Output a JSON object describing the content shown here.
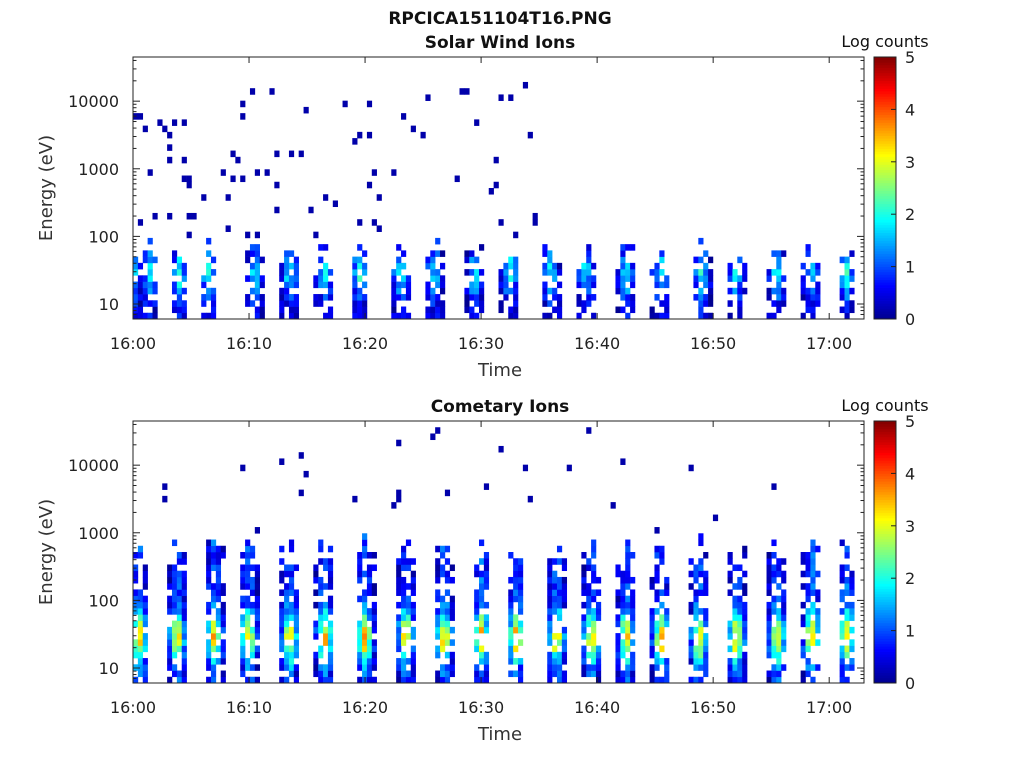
{
  "figure": {
    "title": "RPCICA151104T16.PNG"
  },
  "colors": {
    "colormap": [
      "#00008f",
      "#0000ff",
      "#0080ff",
      "#00ffff",
      "#80ff80",
      "#ffff00",
      "#ff8000",
      "#ff0000",
      "#800000"
    ],
    "axes": "#222222"
  },
  "chart_data": [
    {
      "type": "heatmap",
      "title": "Solar Wind Ions",
      "xlabel": "Time",
      "ylabel": "Energy (eV)",
      "x_ticks": [
        "16:00",
        "16:10",
        "16:20",
        "16:30",
        "16:40",
        "16:50",
        "17:00"
      ],
      "y_scale": "log",
      "y_ticks": [
        "10",
        "100",
        "1000",
        "10000"
      ],
      "ylim": [
        6,
        45000
      ],
      "xlim_minutes": [
        0,
        63
      ],
      "colorbar": {
        "title": "Log counts",
        "min": 0,
        "max": 5,
        "ticks": [
          "0",
          "1",
          "2",
          "3",
          "4",
          "5"
        ]
      },
      "bursts_minutes": [
        0,
        1.5,
        4,
        6.5,
        10.5,
        13.5,
        16.5,
        19.5,
        23,
        26,
        29.5,
        32.5,
        36,
        39,
        42.5,
        45.5,
        49,
        52,
        55.5,
        58.5,
        61.5
      ],
      "burst_intensity": 1.4,
      "sparse_high_energy": true
    },
    {
      "type": "heatmap",
      "title": "Cometary Ions",
      "xlabel": "Time",
      "ylabel": "Energy (eV)",
      "x_ticks": [
        "16:00",
        "16:10",
        "16:20",
        "16:30",
        "16:40",
        "16:50",
        "17:00"
      ],
      "y_scale": "log",
      "y_ticks": [
        "10",
        "100",
        "1000",
        "10000"
      ],
      "ylim": [
        6,
        45000
      ],
      "xlim_minutes": [
        0,
        63
      ],
      "colorbar": {
        "title": "Log counts",
        "min": 0,
        "max": 5,
        "ticks": [
          "0",
          "1",
          "2",
          "3",
          "4",
          "5"
        ]
      },
      "bursts_minutes": [
        0.5,
        3.8,
        7,
        10,
        13.5,
        16.5,
        20,
        23.5,
        26.8,
        30,
        33,
        36.5,
        39.5,
        42.5,
        45.5,
        48.8,
        52,
        55.5,
        58.5,
        61.5
      ],
      "burst_intensity": 2.6,
      "sparse_high_energy": false
    }
  ]
}
